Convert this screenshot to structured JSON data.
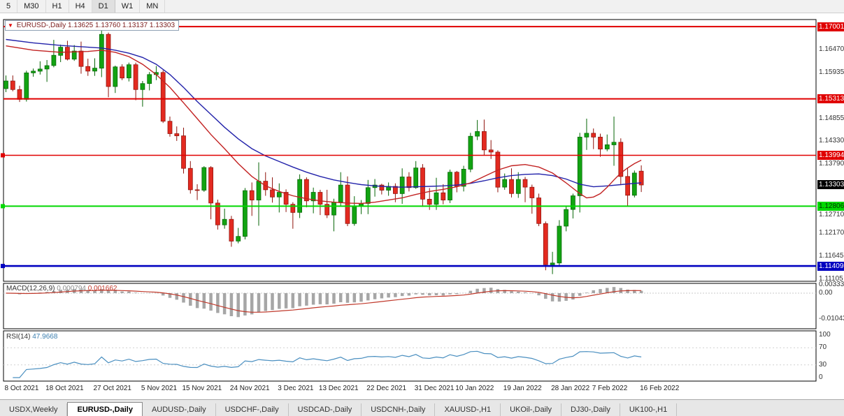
{
  "toolbar": {
    "timeframes": [
      "5",
      "M30",
      "H1",
      "H4",
      "D1",
      "W1",
      "MN"
    ],
    "active": "D1"
  },
  "chart": {
    "title": {
      "marker": "▼",
      "symbol": "EURUSD-,Daily",
      "open": "1.13625",
      "high": "1.13760",
      "low": "1.13137",
      "close": "1.13303"
    },
    "price_axis_labels": [
      "1.16470",
      "1.15935",
      "1.14855",
      "1.14330",
      "1.13790",
      "1.12710",
      "1.12170",
      "1.11645",
      "1.11105"
    ],
    "current_price": {
      "label": "1.13303",
      "value": 1.13303,
      "bg": "#000000",
      "fg": "#ffffff"
    },
    "hlines": [
      {
        "label": "1.17001",
        "value": 1.17001,
        "color": "#e00000",
        "text": "#ffffff",
        "anchor": false,
        "width": 2
      },
      {
        "label": "1.15313",
        "value": 1.15313,
        "color": "#e00000",
        "text": "#ffffff",
        "anchor": false,
        "width": 2
      },
      {
        "label": "1.13994",
        "value": 1.13994,
        "color": "#e00000",
        "text": "#ffffff",
        "anchor": true,
        "width": 1.6
      },
      {
        "label": "1.12806",
        "value": 1.12806,
        "color": "#00d800",
        "text": "#003300",
        "anchor": true,
        "width": 2
      },
      {
        "label": "1.11409",
        "value": 1.11409,
        "color": "#0000c0",
        "text": "#ffffff",
        "anchor": true,
        "width": 2.6
      }
    ]
  },
  "chart_data": {
    "type": "candlestick",
    "title": "EURUSD-,Daily",
    "symbol": "EURUSD",
    "period": "Daily",
    "y_range": [
      1.1105,
      1.1716
    ],
    "colors": {
      "up": "#12a312",
      "up_border": "#076607",
      "down": "#e32a20",
      "down_border": "#8f130c"
    },
    "x_labels": [
      {
        "label": "8 Oct 2021",
        "index": 0
      },
      {
        "label": "18 Oct 2021",
        "index": 6
      },
      {
        "label": "27 Oct 2021",
        "index": 13
      },
      {
        "label": "5 Nov 2021",
        "index": 20
      },
      {
        "label": "15 Nov 2021",
        "index": 26
      },
      {
        "label": "24 Nov 2021",
        "index": 33
      },
      {
        "label": "3 Dec 2021",
        "index": 40
      },
      {
        "label": "13 Dec 2021",
        "index": 46
      },
      {
        "label": "22 Dec 2021",
        "index": 53
      },
      {
        "label": "31 Dec 2021",
        "index": 60
      },
      {
        "label": "10 Jan 2022",
        "index": 66
      },
      {
        "label": "19 Jan 2022",
        "index": 73
      },
      {
        "label": "28 Jan 2022",
        "index": 80
      },
      {
        "label": "7 Feb 2022",
        "index": 86
      },
      {
        "label": "16 Feb 2022",
        "index": 93
      }
    ],
    "candles_ohlc": [
      [
        1.1555,
        1.1586,
        1.1547,
        1.1573
      ],
      [
        1.1573,
        1.1586,
        1.1549,
        1.1553
      ],
      [
        1.1553,
        1.1562,
        1.1524,
        1.153
      ],
      [
        1.153,
        1.1597,
        1.1525,
        1.1592
      ],
      [
        1.1592,
        1.1602,
        1.1583,
        1.1596
      ],
      [
        1.1596,
        1.1619,
        1.1588,
        1.1601
      ],
      [
        1.1601,
        1.1622,
        1.1571,
        1.1609
      ],
      [
        1.1609,
        1.1669,
        1.1605,
        1.1633
      ],
      [
        1.1633,
        1.1658,
        1.1617,
        1.1652
      ],
      [
        1.1652,
        1.1667,
        1.1621,
        1.1624
      ],
      [
        1.1624,
        1.1657,
        1.162,
        1.1643
      ],
      [
        1.1643,
        1.1665,
        1.159,
        1.1607
      ],
      [
        1.1607,
        1.1625,
        1.1585,
        1.1596
      ],
      [
        1.1596,
        1.1626,
        1.1585,
        1.1603
      ],
      [
        1.1603,
        1.1692,
        1.1582,
        1.1682
      ],
      [
        1.1682,
        1.1686,
        1.1535,
        1.156
      ],
      [
        1.156,
        1.1609,
        1.1545,
        1.1606
      ],
      [
        1.1606,
        1.1612,
        1.1575,
        1.158
      ],
      [
        1.158,
        1.1616,
        1.1572,
        1.1611
      ],
      [
        1.1611,
        1.1616,
        1.1528,
        1.1553
      ],
      [
        1.1553,
        1.1573,
        1.1513,
        1.1567
      ],
      [
        1.1567,
        1.1594,
        1.1551,
        1.1588
      ],
      [
        1.1588,
        1.1608,
        1.1575,
        1.1593
      ],
      [
        1.1593,
        1.1598,
        1.1475,
        1.1479
      ],
      [
        1.1479,
        1.149,
        1.1443,
        1.145
      ],
      [
        1.145,
        1.1467,
        1.1433,
        1.1445
      ],
      [
        1.1445,
        1.1464,
        1.1357,
        1.1369
      ],
      [
        1.1369,
        1.1386,
        1.131,
        1.1319
      ],
      [
        1.1319,
        1.1332,
        1.1295,
        1.1318
      ],
      [
        1.1318,
        1.1374,
        1.1314,
        1.1371
      ],
      [
        1.1371,
        1.1374,
        1.125,
        1.1288
      ],
      [
        1.1288,
        1.1296,
        1.1226,
        1.1237
      ],
      [
        1.1237,
        1.1275,
        1.1228,
        1.125
      ],
      [
        1.125,
        1.1258,
        1.1186,
        1.1199
      ],
      [
        1.1199,
        1.123,
        1.1194,
        1.121
      ],
      [
        1.121,
        1.1323,
        1.1203,
        1.1317
      ],
      [
        1.1317,
        1.1336,
        1.1258,
        1.1295
      ],
      [
        1.1295,
        1.1383,
        1.1235,
        1.1339
      ],
      [
        1.1339,
        1.136,
        1.1305,
        1.1319
      ],
      [
        1.1319,
        1.1348,
        1.1289,
        1.1302
      ],
      [
        1.1302,
        1.1334,
        1.1266,
        1.1313
      ],
      [
        1.1313,
        1.132,
        1.1267,
        1.1285
      ],
      [
        1.1285,
        1.129,
        1.1228,
        1.1266
      ],
      [
        1.1266,
        1.1355,
        1.1253,
        1.1343
      ],
      [
        1.1343,
        1.1348,
        1.1278,
        1.1293
      ],
      [
        1.1293,
        1.1324,
        1.1264,
        1.1313
      ],
      [
        1.1313,
        1.1319,
        1.126,
        1.1285
      ],
      [
        1.1285,
        1.1319,
        1.1253,
        1.126
      ],
      [
        1.126,
        1.1298,
        1.1222,
        1.129
      ],
      [
        1.129,
        1.136,
        1.128,
        1.133
      ],
      [
        1.133,
        1.135,
        1.1234,
        1.124
      ],
      [
        1.124,
        1.1304,
        1.1235,
        1.128
      ],
      [
        1.128,
        1.1295,
        1.1262,
        1.1287
      ],
      [
        1.1287,
        1.1342,
        1.1262,
        1.1324
      ],
      [
        1.1324,
        1.1344,
        1.1303,
        1.133
      ],
      [
        1.133,
        1.1333,
        1.1308,
        1.1318
      ],
      [
        1.1318,
        1.1336,
        1.1305,
        1.1327
      ],
      [
        1.1327,
        1.1334,
        1.129,
        1.131
      ],
      [
        1.131,
        1.1369,
        1.1286,
        1.1349
      ],
      [
        1.1349,
        1.136,
        1.1315,
        1.1324
      ],
      [
        1.1324,
        1.1386,
        1.1321,
        1.137
      ],
      [
        1.137,
        1.1379,
        1.1279,
        1.1297
      ],
      [
        1.1297,
        1.1323,
        1.1272,
        1.1285
      ],
      [
        1.1285,
        1.1347,
        1.1272,
        1.1312
      ],
      [
        1.1312,
        1.1332,
        1.1285,
        1.1295
      ],
      [
        1.1295,
        1.1366,
        1.1288,
        1.136
      ],
      [
        1.136,
        1.1363,
        1.1313,
        1.1327
      ],
      [
        1.1327,
        1.1375,
        1.1315,
        1.1367
      ],
      [
        1.1367,
        1.1452,
        1.136,
        1.1444
      ],
      [
        1.1444,
        1.1482,
        1.1435,
        1.1455
      ],
      [
        1.1455,
        1.1483,
        1.1399,
        1.1412
      ],
      [
        1.1412,
        1.1435,
        1.1391,
        1.1407
      ],
      [
        1.1407,
        1.1411,
        1.1313,
        1.1325
      ],
      [
        1.1325,
        1.1357,
        1.1319,
        1.1343
      ],
      [
        1.1343,
        1.1369,
        1.1301,
        1.131
      ],
      [
        1.131,
        1.136,
        1.13,
        1.1343
      ],
      [
        1.1343,
        1.1349,
        1.129,
        1.1325
      ],
      [
        1.1325,
        1.1331,
        1.1263,
        1.13
      ],
      [
        1.13,
        1.131,
        1.1234,
        1.124
      ],
      [
        1.124,
        1.1245,
        1.1131,
        1.1144
      ],
      [
        1.1144,
        1.1174,
        1.1122,
        1.1148
      ],
      [
        1.1148,
        1.1248,
        1.114,
        1.1234
      ],
      [
        1.1234,
        1.128,
        1.1222,
        1.1273
      ],
      [
        1.1273,
        1.131,
        1.1252,
        1.1305
      ],
      [
        1.1305,
        1.1452,
        1.1266,
        1.1442
      ],
      [
        1.1442,
        1.1485,
        1.1412,
        1.1451
      ],
      [
        1.1451,
        1.1462,
        1.1414,
        1.1442
      ],
      [
        1.1442,
        1.145,
        1.1396,
        1.1414
      ],
      [
        1.1414,
        1.1448,
        1.1409,
        1.1424
      ],
      [
        1.1424,
        1.149,
        1.1375,
        1.143
      ],
      [
        1.143,
        1.1439,
        1.133,
        1.135
      ],
      [
        1.135,
        1.137,
        1.128,
        1.1306
      ],
      [
        1.1306,
        1.1364,
        1.1301,
        1.1358
      ],
      [
        1.13625,
        1.1376,
        1.13137,
        1.13303
      ]
    ],
    "ma_slow": {
      "name": "ma-slow",
      "color": "#2222aa",
      "points": [
        [
          0,
          1.167
        ],
        [
          4,
          1.1662
        ],
        [
          8,
          1.1656
        ],
        [
          12,
          1.1652
        ],
        [
          14,
          1.165
        ],
        [
          16,
          1.1645
        ],
        [
          18,
          1.1638
        ],
        [
          20,
          1.1628
        ],
        [
          22,
          1.1612
        ],
        [
          24,
          1.1588
        ],
        [
          26,
          1.1558
        ],
        [
          28,
          1.1525
        ],
        [
          30,
          1.1495
        ],
        [
          32,
          1.1465
        ],
        [
          34,
          1.1438
        ],
        [
          36,
          1.1415
        ],
        [
          38,
          1.1398
        ],
        [
          40,
          1.1385
        ],
        [
          42,
          1.1372
        ],
        [
          44,
          1.136
        ],
        [
          46,
          1.135
        ],
        [
          48,
          1.1342
        ],
        [
          50,
          1.1336
        ],
        [
          52,
          1.1331
        ],
        [
          54,
          1.1328
        ],
        [
          56,
          1.1326
        ],
        [
          58,
          1.1325
        ],
        [
          60,
          1.1326
        ],
        [
          62,
          1.1327
        ],
        [
          64,
          1.1328
        ],
        [
          66,
          1.133
        ],
        [
          68,
          1.1334
        ],
        [
          70,
          1.134
        ],
        [
          72,
          1.1347
        ],
        [
          74,
          1.1352
        ],
        [
          76,
          1.1355
        ],
        [
          78,
          1.1356
        ],
        [
          80,
          1.1352
        ],
        [
          82,
          1.1344
        ],
        [
          84,
          1.1332
        ],
        [
          86,
          1.1326
        ],
        [
          88,
          1.1328
        ],
        [
          90,
          1.1331
        ],
        [
          92,
          1.1334
        ],
        [
          93,
          1.1335
        ]
      ]
    },
    "ma_fast": {
      "name": "ma-fast",
      "color": "#c22222",
      "points": [
        [
          0,
          1.1655
        ],
        [
          4,
          1.1645
        ],
        [
          8,
          1.164
        ],
        [
          12,
          1.1642
        ],
        [
          14,
          1.1645
        ],
        [
          16,
          1.164
        ],
        [
          18,
          1.163
        ],
        [
          20,
          1.1612
        ],
        [
          22,
          1.1588
        ],
        [
          24,
          1.1558
        ],
        [
          26,
          1.1522
        ],
        [
          28,
          1.1485
        ],
        [
          30,
          1.1448
        ],
        [
          32,
          1.1415
        ],
        [
          34,
          1.138
        ],
        [
          36,
          1.135
        ],
        [
          38,
          1.1328
        ],
        [
          40,
          1.1315
        ],
        [
          42,
          1.1305
        ],
        [
          44,
          1.1298
        ],
        [
          46,
          1.1293
        ],
        [
          48,
          1.129
        ],
        [
          50,
          1.1288
        ],
        [
          52,
          1.1287
        ],
        [
          54,
          1.129
        ],
        [
          56,
          1.1295
        ],
        [
          58,
          1.13
        ],
        [
          60,
          1.1308
        ],
        [
          62,
          1.1315
        ],
        [
          64,
          1.132
        ],
        [
          66,
          1.1326
        ],
        [
          68,
          1.1335
        ],
        [
          70,
          1.135
        ],
        [
          72,
          1.1365
        ],
        [
          74,
          1.1375
        ],
        [
          76,
          1.1378
        ],
        [
          78,
          1.1372
        ],
        [
          80,
          1.1358
        ],
        [
          82,
          1.1335
        ],
        [
          84,
          1.131
        ],
        [
          85,
          1.13
        ],
        [
          86,
          1.1302
        ],
        [
          87,
          1.131
        ],
        [
          88,
          1.1325
        ],
        [
          89,
          1.1342
        ],
        [
          90,
          1.1358
        ],
        [
          91,
          1.137
        ],
        [
          92,
          1.138
        ],
        [
          93,
          1.1388
        ]
      ]
    }
  },
  "macd": {
    "label": "MACD(12,26,9)",
    "value_macd": "0.000794",
    "value_signal": "0.001662",
    "params": {
      "fast": 12,
      "slow": 26,
      "signal": 9
    },
    "axis": [
      {
        "label": "0.00333",
        "value": 0.00333
      },
      {
        "label": "0.00",
        "value": 0
      },
      {
        "label": "-0.01043",
        "value": -0.01043
      }
    ]
  },
  "rsi": {
    "label": "RSI(14)",
    "value": "47.9668",
    "period": 14,
    "levels": [
      70,
      30
    ],
    "axis": [
      {
        "label": "100",
        "value": 100
      },
      {
        "label": "70",
        "value": 70
      },
      {
        "label": "30",
        "value": 30
      },
      {
        "label": "0",
        "value": 0
      }
    ]
  },
  "tabs": {
    "items": [
      "USDX,Weekly",
      "EURUSD-,Daily",
      "AUDUSD-,Daily",
      "USDCHF-,Daily",
      "USDCAD-,Daily",
      "USDCNH-,Daily",
      "XAUUSD-,H1",
      "UKOil-,Daily",
      "DJ30-,Daily",
      "UK100-,H1"
    ],
    "active_index": 1
  }
}
